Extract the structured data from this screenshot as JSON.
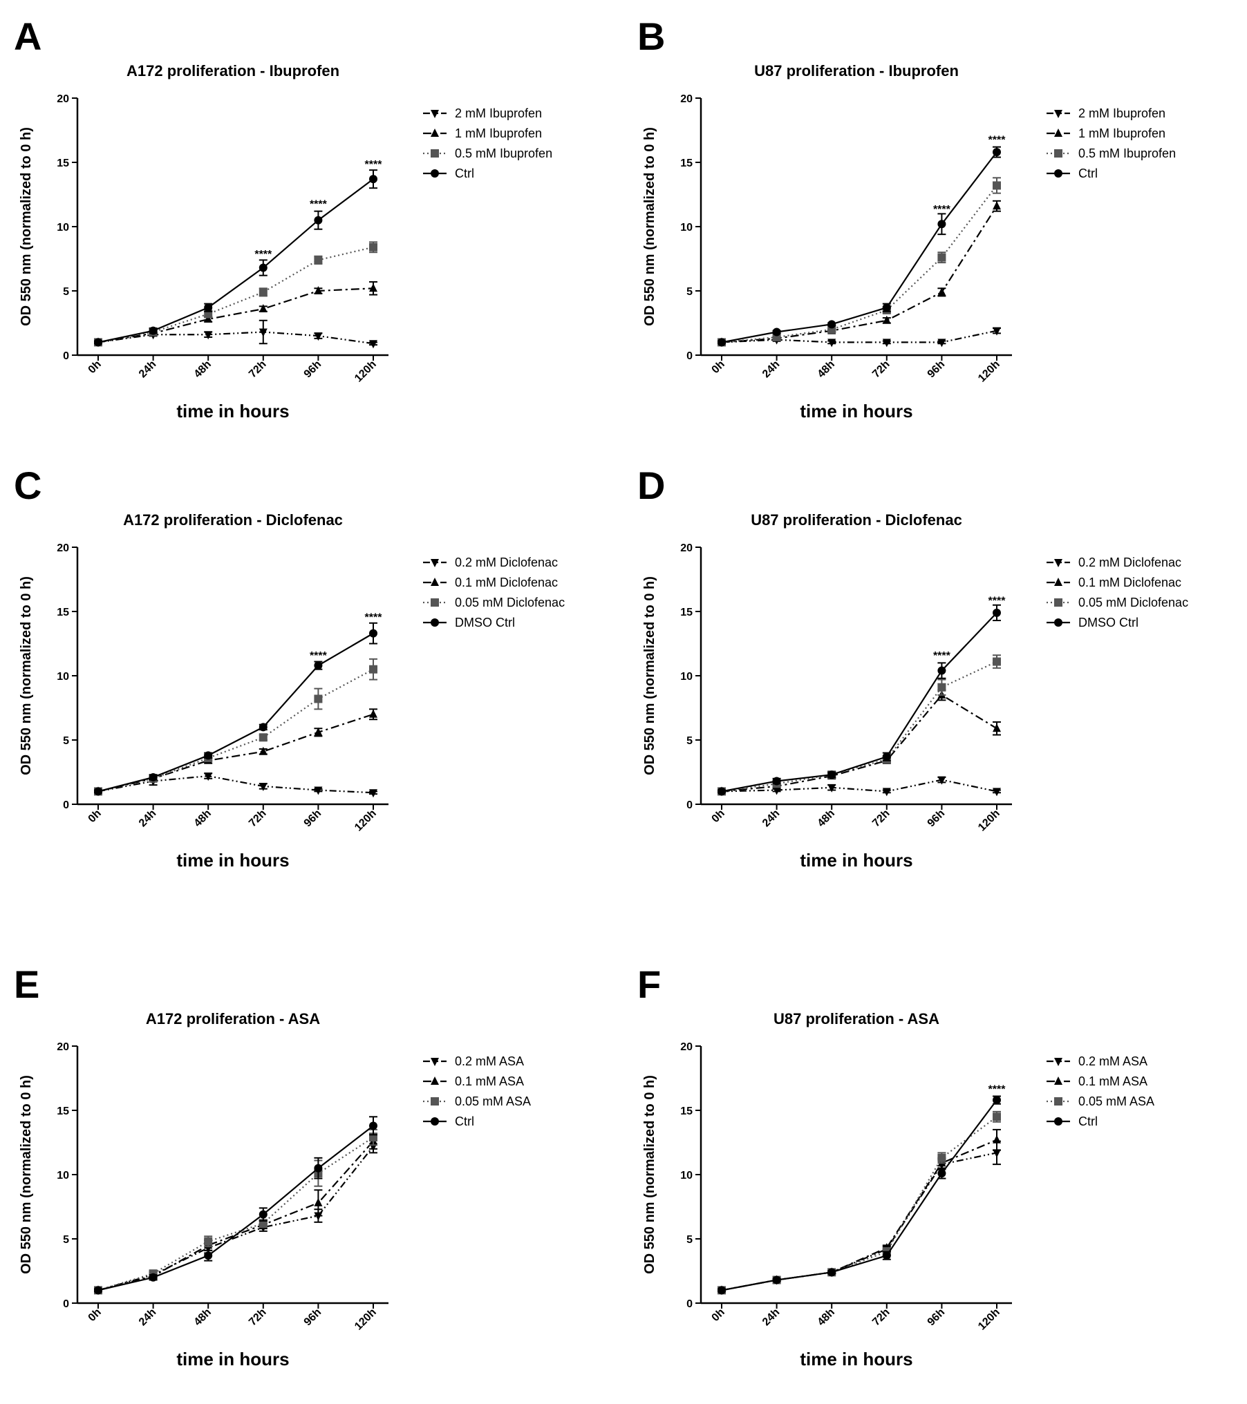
{
  "chart_data": [
    {
      "panel": "A",
      "type": "line",
      "title": "A172 proliferation - Ibuprofen",
      "xlabel": "time in hours",
      "ylabel": "OD 550 nm (normalized to 0 h)",
      "ylim": [
        0,
        20
      ],
      "yticks": [
        "0",
        "5",
        "10",
        "15",
        "20"
      ],
      "categories": [
        "0h",
        "24h",
        "48h",
        "72h",
        "96h",
        "120h"
      ],
      "legend_position": "top-right",
      "series": [
        {
          "name": "2 mM Ibuprofen",
          "style": "dashdotdot",
          "marker": "triangle-down",
          "color": "#000000",
          "values": [
            1.0,
            1.6,
            1.6,
            1.8,
            1.5,
            0.9
          ],
          "errors": [
            0.1,
            0.1,
            0.2,
            0.9,
            0.2,
            0.1
          ]
        },
        {
          "name": "1 mM Ibuprofen",
          "style": "dashdot",
          "marker": "triangle-up",
          "color": "#000000",
          "values": [
            1.0,
            1.7,
            2.8,
            3.6,
            5.0,
            5.2
          ],
          "errors": [
            0.1,
            0.1,
            0.2,
            0.2,
            0.2,
            0.5
          ]
        },
        {
          "name": "0.5 mM Ibuprofen",
          "style": "dotted",
          "marker": "square",
          "color": "#555555",
          "values": [
            1.0,
            1.8,
            3.2,
            4.9,
            7.4,
            8.4
          ],
          "errors": [
            0.1,
            0.1,
            0.2,
            0.3,
            0.3,
            0.4
          ]
        },
        {
          "name": "Ctrl",
          "style": "solid",
          "marker": "circle",
          "color": "#000000",
          "values": [
            1.0,
            1.9,
            3.7,
            6.8,
            10.5,
            13.7
          ],
          "errors": [
            0.1,
            0.2,
            0.3,
            0.6,
            0.7,
            0.7
          ]
        }
      ],
      "annotations": [
        {
          "category": "72h",
          "text": "****",
          "y": 7.9
        },
        {
          "category": "96h",
          "text": "****",
          "y": 11.8
        },
        {
          "category": "120h",
          "text": "****",
          "y": 14.9
        }
      ]
    },
    {
      "panel": "B",
      "type": "line",
      "title": "U87 proliferation - Ibuprofen",
      "xlabel": "time in hours",
      "ylabel": "OD 550 nm (normalized to 0 h)",
      "ylim": [
        0,
        20
      ],
      "yticks": [
        "0",
        "5",
        "10",
        "15",
        "20"
      ],
      "categories": [
        "0h",
        "24h",
        "48h",
        "72h",
        "96h",
        "120h"
      ],
      "legend_position": "top-right",
      "series": [
        {
          "name": "2 mM Ibuprofen",
          "style": "dashdotdot",
          "marker": "triangle-down",
          "color": "#000000",
          "values": [
            1.0,
            1.2,
            1.0,
            1.0,
            1.0,
            1.9
          ],
          "errors": [
            0.1,
            0.1,
            0.1,
            0.1,
            0.1,
            0.2
          ]
        },
        {
          "name": "1 mM Ibuprofen",
          "style": "dashdot",
          "marker": "triangle-up",
          "color": "#000000",
          "values": [
            1.0,
            1.3,
            1.9,
            2.7,
            4.9,
            11.6
          ],
          "errors": [
            0.1,
            0.1,
            0.1,
            0.2,
            0.3,
            0.4
          ]
        },
        {
          "name": "0.5 mM Ibuprofen",
          "style": "dotted",
          "marker": "square",
          "color": "#555555",
          "values": [
            1.0,
            1.4,
            2.0,
            3.5,
            7.6,
            13.2
          ],
          "errors": [
            0.1,
            0.1,
            0.1,
            0.2,
            0.4,
            0.6
          ]
        },
        {
          "name": "Ctrl",
          "style": "solid",
          "marker": "circle",
          "color": "#000000",
          "values": [
            1.0,
            1.8,
            2.4,
            3.7,
            10.2,
            15.8
          ],
          "errors": [
            0.1,
            0.1,
            0.1,
            0.3,
            0.8,
            0.4
          ]
        }
      ],
      "annotations": [
        {
          "category": "96h",
          "text": "****",
          "y": 11.4
        },
        {
          "category": "120h",
          "text": "****",
          "y": 16.8
        }
      ]
    },
    {
      "panel": "C",
      "type": "line",
      "title": "A172 proliferation - Diclofenac",
      "xlabel": "time in hours",
      "ylabel": "OD 550 nm (normalized to 0 h)",
      "ylim": [
        0,
        20
      ],
      "yticks": [
        "0",
        "5",
        "10",
        "15",
        "20"
      ],
      "categories": [
        "0h",
        "24h",
        "48h",
        "72h",
        "96h",
        "120h"
      ],
      "legend_position": "top-right",
      "series": [
        {
          "name": "0.2 mM Diclofenac",
          "style": "dashdotdot",
          "marker": "triangle-down",
          "color": "#000000",
          "values": [
            1.0,
            1.8,
            2.2,
            1.4,
            1.1,
            0.9
          ],
          "errors": [
            0.1,
            0.3,
            0.2,
            0.2,
            0.1,
            0.1
          ]
        },
        {
          "name": "0.1 mM Diclofenac",
          "style": "dashdot",
          "marker": "triangle-up",
          "color": "#000000",
          "values": [
            1.0,
            2.0,
            3.4,
            4.1,
            5.6,
            7.0
          ],
          "errors": [
            0.1,
            0.2,
            0.2,
            0.2,
            0.3,
            0.4
          ]
        },
        {
          "name": "0.05 mM Diclofenac",
          "style": "dotted",
          "marker": "square",
          "color": "#555555",
          "values": [
            1.0,
            2.0,
            3.6,
            5.2,
            8.2,
            10.5
          ],
          "errors": [
            0.1,
            0.2,
            0.2,
            0.2,
            0.8,
            0.8
          ]
        },
        {
          "name": "DMSO Ctrl",
          "style": "solid",
          "marker": "circle",
          "color": "#000000",
          "values": [
            1.0,
            2.1,
            3.8,
            6.0,
            10.8,
            13.3
          ],
          "errors": [
            0.1,
            0.2,
            0.2,
            0.2,
            0.3,
            0.8
          ]
        }
      ],
      "annotations": [
        {
          "category": "96h",
          "text": "****",
          "y": 11.6
        },
        {
          "category": "120h",
          "text": "****",
          "y": 14.6
        }
      ]
    },
    {
      "panel": "D",
      "type": "line",
      "title": "U87 proliferation - Diclofenac",
      "xlabel": "time in hours",
      "ylabel": "OD 550 nm (normalized to 0 h)",
      "ylim": [
        0,
        20
      ],
      "yticks": [
        "0",
        "5",
        "10",
        "15",
        "20"
      ],
      "categories": [
        "0h",
        "24h",
        "48h",
        "72h",
        "96h",
        "120h"
      ],
      "legend_position": "top-right",
      "series": [
        {
          "name": "0.2 mM Diclofenac",
          "style": "dashdotdot",
          "marker": "triangle-down",
          "color": "#000000",
          "values": [
            1.0,
            1.1,
            1.3,
            1.0,
            1.9,
            1.0
          ],
          "errors": [
            0.1,
            0.1,
            0.2,
            0.1,
            0.2,
            0.1
          ]
        },
        {
          "name": "0.1 mM Diclofenac",
          "style": "dashdot",
          "marker": "triangle-up",
          "color": "#000000",
          "values": [
            1.0,
            1.4,
            2.2,
            3.4,
            8.5,
            5.9
          ],
          "errors": [
            0.1,
            0.1,
            0.2,
            0.2,
            0.4,
            0.5
          ]
        },
        {
          "name": "0.05 mM Diclofenac",
          "style": "dotted",
          "marker": "square",
          "color": "#555555",
          "values": [
            1.0,
            1.6,
            2.3,
            3.5,
            9.1,
            11.1
          ],
          "errors": [
            0.1,
            0.1,
            0.2,
            0.2,
            0.6,
            0.5
          ]
        },
        {
          "name": "DMSO Ctrl",
          "style": "solid",
          "marker": "circle",
          "color": "#000000",
          "values": [
            1.0,
            1.8,
            2.3,
            3.7,
            10.4,
            14.9
          ],
          "errors": [
            0.1,
            0.2,
            0.2,
            0.3,
            0.6,
            0.6
          ]
        }
      ],
      "annotations": [
        {
          "category": "96h",
          "text": "****",
          "y": 11.6
        },
        {
          "category": "120h",
          "text": "****",
          "y": 15.9
        }
      ]
    },
    {
      "panel": "E",
      "type": "line",
      "title": "A172 proliferation - ASA",
      "xlabel": "time in hours",
      "ylabel": "OD 550 nm (normalized to 0 h)",
      "ylim": [
        0,
        20
      ],
      "yticks": [
        "0",
        "5",
        "10",
        "15",
        "20"
      ],
      "categories": [
        "0h",
        "24h",
        "48h",
        "72h",
        "96h",
        "120h"
      ],
      "legend_position": "top-right",
      "series": [
        {
          "name": "0.2 mM ASA",
          "style": "dashdotdot",
          "marker": "triangle-down",
          "color": "#000000",
          "values": [
            1.0,
            2.2,
            4.3,
            5.9,
            6.8,
            12.2
          ],
          "errors": [
            0.1,
            0.2,
            0.4,
            0.3,
            0.5,
            0.5
          ]
        },
        {
          "name": "0.1 mM ASA",
          "style": "dashdot",
          "marker": "triangle-up",
          "color": "#000000",
          "values": [
            1.0,
            2.1,
            4.5,
            6.1,
            7.8,
            12.6
          ],
          "errors": [
            0.1,
            0.2,
            0.4,
            0.3,
            1.0,
            0.6
          ]
        },
        {
          "name": "0.05 mM ASA",
          "style": "dotted",
          "marker": "square",
          "color": "#555555",
          "values": [
            1.0,
            2.3,
            4.8,
            6.2,
            10.1,
            12.9
          ],
          "errors": [
            0.1,
            0.2,
            0.4,
            0.3,
            1.0,
            0.6
          ]
        },
        {
          "name": "Ctrl",
          "style": "solid",
          "marker": "circle",
          "color": "#000000",
          "values": [
            1.0,
            2.0,
            3.7,
            6.9,
            10.5,
            13.8
          ],
          "errors": [
            0.1,
            0.2,
            0.4,
            0.5,
            0.8,
            0.7
          ]
        }
      ],
      "annotations": []
    },
    {
      "panel": "F",
      "type": "line",
      "title": "U87 proliferation - ASA",
      "xlabel": "time in hours",
      "ylabel": "OD 550 nm (normalized to 0 h)",
      "ylim": [
        0,
        20
      ],
      "yticks": [
        "0",
        "5",
        "10",
        "15",
        "20"
      ],
      "categories": [
        "0h",
        "24h",
        "48h",
        "72h",
        "96h",
        "120h"
      ],
      "legend_position": "top-right",
      "series": [
        {
          "name": "0.2 mM ASA",
          "style": "dashdotdot",
          "marker": "triangle-down",
          "color": "#000000",
          "values": [
            1.0,
            1.8,
            2.4,
            4.2,
            10.8,
            11.7
          ],
          "errors": [
            0.1,
            0.1,
            0.1,
            0.2,
            0.4,
            0.9
          ]
        },
        {
          "name": "0.1 mM ASA",
          "style": "dashdot",
          "marker": "triangle-up",
          "color": "#000000",
          "values": [
            1.0,
            1.8,
            2.4,
            4.3,
            10.9,
            12.7
          ],
          "errors": [
            0.1,
            0.1,
            0.1,
            0.2,
            0.4,
            0.8
          ]
        },
        {
          "name": "0.05 mM ASA",
          "style": "dotted",
          "marker": "square",
          "color": "#555555",
          "values": [
            1.0,
            1.8,
            2.4,
            4.0,
            11.3,
            14.5
          ],
          "errors": [
            0.1,
            0.1,
            0.1,
            0.3,
            0.4,
            0.4
          ]
        },
        {
          "name": "Ctrl",
          "style": "solid",
          "marker": "circle",
          "color": "#000000",
          "values": [
            1.0,
            1.8,
            2.4,
            3.7,
            10.1,
            15.8
          ],
          "errors": [
            0.1,
            0.1,
            0.1,
            0.3,
            0.4,
            0.3
          ]
        }
      ],
      "annotations": [
        {
          "category": "120h",
          "text": "****",
          "y": 16.7
        }
      ]
    }
  ]
}
